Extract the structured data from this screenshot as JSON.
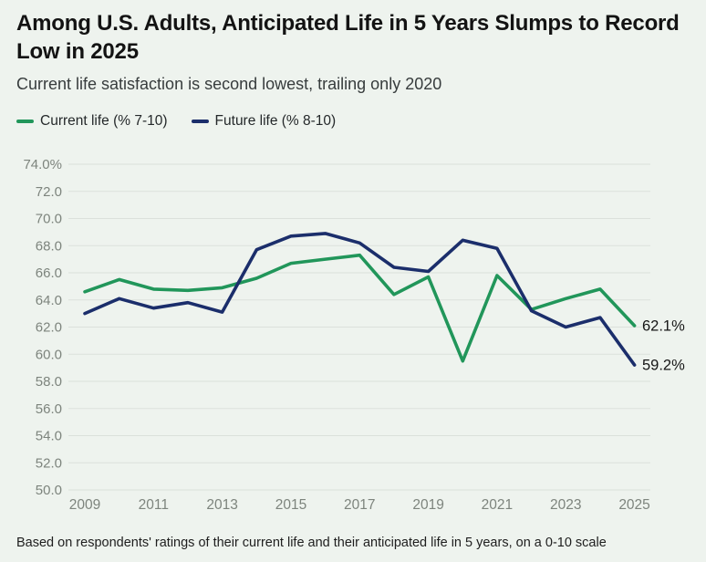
{
  "page": {
    "title": "Among U.S. Adults, Anticipated Life in 5 Years Slumps to Record Low in 2025",
    "subtitle": "Current life satisfaction is second lowest, trailing only 2020",
    "footnote": "Based on respondents' ratings of their current life and their anticipated life in 5 years, on a 0-10 scale"
  },
  "legend": [
    {
      "label": "Current life (% 7-10)",
      "color": "#21965a"
    },
    {
      "label": "Future life (% 8-10)",
      "color": "#1b2e6b"
    }
  ],
  "colors": {
    "background": "#eef3ee",
    "gridline": "#dbe1db",
    "axis_text": "#7d847d",
    "title_text": "#131313",
    "subtitle_text": "#373c3d",
    "end_label_text": "#161616",
    "current_line": "#21965a",
    "future_line": "#1b2e6b"
  },
  "chart_data": {
    "type": "line",
    "title": "Among U.S. Adults, Anticipated Life in 5 Years Slumps to Record Low in 2025",
    "subtitle": "Current life satisfaction is second lowest, trailing only 2020",
    "xlabel": "",
    "ylabel": "",
    "grid": true,
    "legend_position": "top",
    "ylim": [
      50,
      74
    ],
    "ytick_values": [
      74,
      72,
      70,
      68,
      66,
      64,
      62,
      60,
      58,
      56,
      54,
      52,
      50
    ],
    "ytick_labels": [
      "74.0%",
      "72.0",
      "70.0",
      "68.0",
      "66.0",
      "64.0",
      "62.0",
      "60.0",
      "58.0",
      "56.0",
      "54.0",
      "52.0",
      "50.0"
    ],
    "xtick_values": [
      2009,
      2011,
      2013,
      2015,
      2017,
      2019,
      2021,
      2023,
      2025
    ],
    "xtick_labels": [
      "2009",
      "2011",
      "2013",
      "2015",
      "2017",
      "2019",
      "2021",
      "2023",
      "2025"
    ],
    "x": [
      2009,
      2010,
      2011,
      2012,
      2013,
      2014,
      2015,
      2016,
      2017,
      2018,
      2019,
      2020,
      2021,
      2022,
      2023,
      2024,
      2025
    ],
    "series": [
      {
        "name": "Current life (% 7-10)",
        "color": "#21965a",
        "end_label": "62.1%",
        "values": [
          64.6,
          65.5,
          64.8,
          64.7,
          64.9,
          65.6,
          66.7,
          67.0,
          67.3,
          64.4,
          65.7,
          59.5,
          65.8,
          63.3,
          64.1,
          64.8,
          62.1
        ]
      },
      {
        "name": "Future life (% 8-10)",
        "color": "#1b2e6b",
        "end_label": "59.2%",
        "values": [
          63.0,
          64.1,
          63.4,
          63.8,
          63.1,
          67.7,
          68.7,
          68.9,
          68.2,
          66.4,
          66.1,
          68.4,
          67.8,
          63.2,
          62.0,
          62.7,
          59.2
        ]
      }
    ]
  }
}
